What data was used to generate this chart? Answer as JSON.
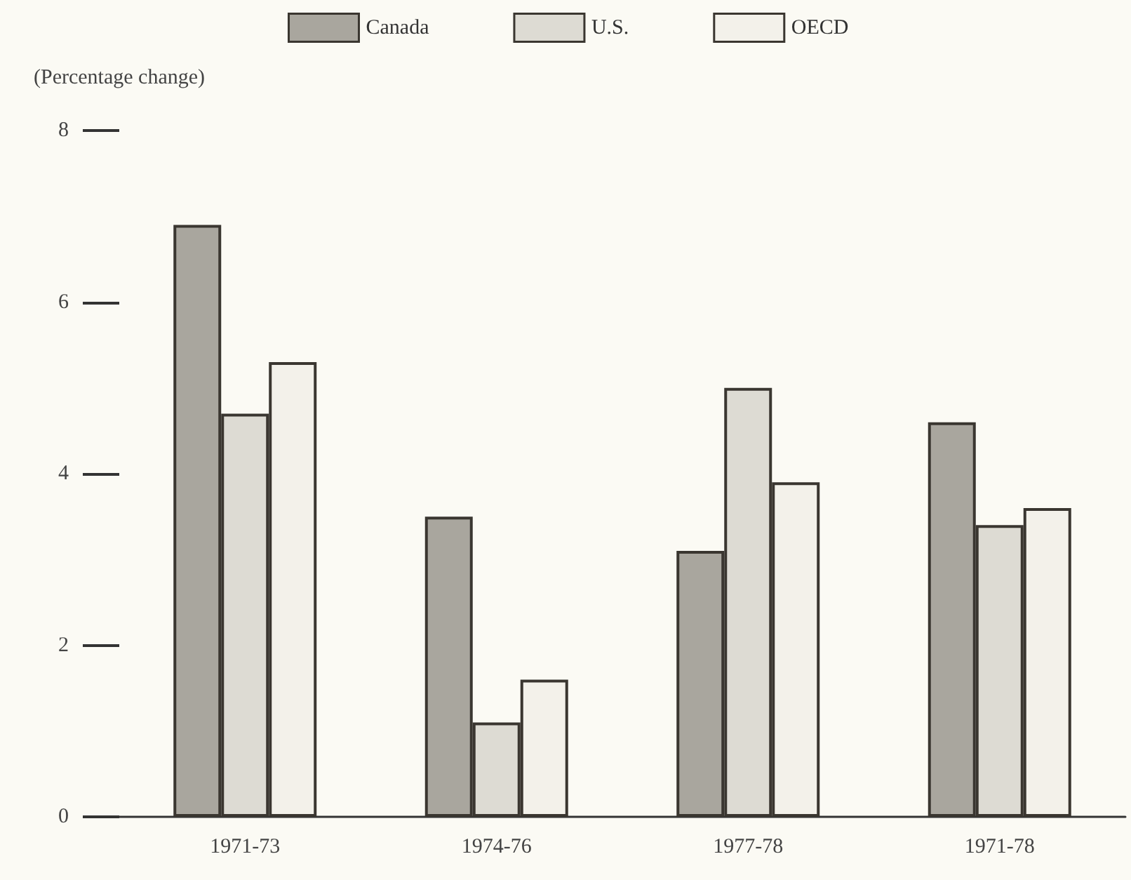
{
  "chart_data": {
    "type": "bar",
    "ylabel": "(Percentage change)",
    "categories": [
      "1971-73",
      "1974-76",
      "1977-78",
      "1971-78"
    ],
    "series": [
      {
        "name": "Canada",
        "color": "#a9a69e",
        "values": [
          6.9,
          3.5,
          3.1,
          4.6
        ]
      },
      {
        "name": "U.S.",
        "color": "#dddbd3",
        "values": [
          4.7,
          1.1,
          5.0,
          3.4
        ]
      },
      {
        "name": "OECD",
        "color": "#f3f1ea",
        "values": [
          5.3,
          1.6,
          3.9,
          3.6
        ]
      }
    ],
    "ylim": [
      0,
      8
    ],
    "yticks": [
      0,
      2,
      4,
      6,
      8
    ],
    "grid": false,
    "legend": "top"
  }
}
